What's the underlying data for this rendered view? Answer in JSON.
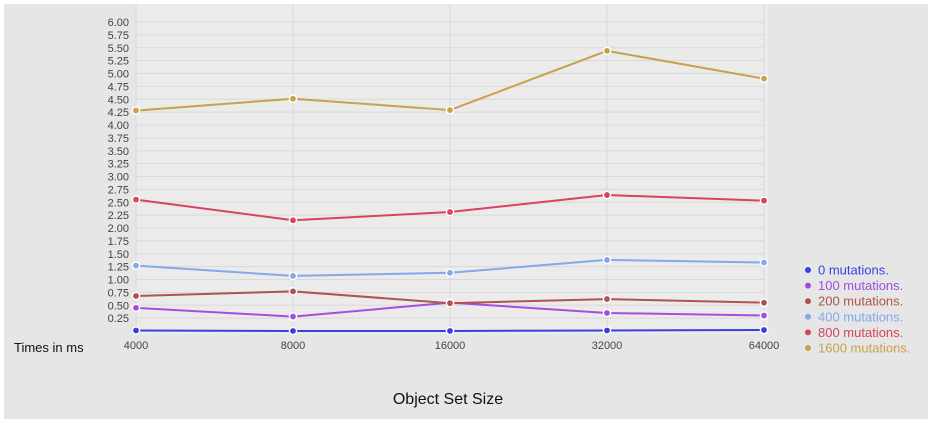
{
  "chart_data": {
    "type": "line",
    "title": "",
    "xlabel": "Object Set Size",
    "ylabel": "Times in ms",
    "categories": [
      "4000",
      "8000",
      "16000",
      "32000",
      "64000"
    ],
    "ylim": [
      0,
      6.0
    ],
    "yticks": [
      "0.25",
      "0.50",
      "0.75",
      "1.00",
      "1.25",
      "1.50",
      "1.75",
      "2.00",
      "2.25",
      "2.50",
      "2.75",
      "3.00",
      "3.25",
      "3.50",
      "3.75",
      "4.00",
      "4.25",
      "4.50",
      "4.75",
      "5.00",
      "5.25",
      "5.50",
      "5.75",
      "6.00"
    ],
    "grid": true,
    "legend_position": "right",
    "series": [
      {
        "name": "0 mutations.",
        "color": "#3b3fe0",
        "values": [
          0.01,
          0.0,
          0.0,
          0.01,
          0.02
        ]
      },
      {
        "name": "100 mutations.",
        "color": "#a24fe0",
        "values": [
          0.45,
          0.28,
          0.55,
          0.35,
          0.3
        ]
      },
      {
        "name": "200 mutations.",
        "color": "#b0524f",
        "values": [
          0.68,
          0.77,
          0.54,
          0.62,
          0.55
        ]
      },
      {
        "name": "400 mutations.",
        "color": "#84a8ea",
        "values": [
          1.27,
          1.07,
          1.13,
          1.38,
          1.33
        ]
      },
      {
        "name": "800 mutations.",
        "color": "#d6455f",
        "values": [
          2.55,
          2.15,
          2.31,
          2.64,
          2.53
        ]
      },
      {
        "name": "1600 mutations.",
        "color": "#c9a14a",
        "values": [
          4.28,
          4.51,
          4.29,
          5.44,
          4.9
        ]
      }
    ]
  }
}
